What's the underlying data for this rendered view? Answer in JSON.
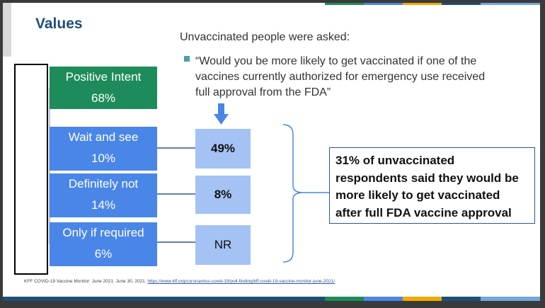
{
  "slide": {
    "title": "Values",
    "intro": "Unvaccinated people were asked:",
    "question": "“Would you be more likely to get vaccinated if one of the vaccines currently authorized for emergency use received full approval from the FDA”",
    "categories": [
      {
        "label": "Positive Intent",
        "value": "68%",
        "color": "#1e8c5a"
      },
      {
        "label": "Wait and see",
        "value": "10%",
        "color": "#4a86e8"
      },
      {
        "label": "Definitely not",
        "value": "14%",
        "color": "#4a86e8"
      },
      {
        "label": "Only if required",
        "value": "6%",
        "color": "#4a86e8"
      }
    ],
    "results": [
      {
        "value": "49%"
      },
      {
        "value": "8%"
      },
      {
        "value": "NR"
      }
    ],
    "callout": "31% of unvaccinated respondents said they would be more likely to get vaccinated after full FDA vaccine approval",
    "footnote": {
      "text": "KFF COVID-19 Vaccine Monitor: June 2021. June 30, 2021.",
      "link": "https://www.kff.org/coronavirus-covid-19/poll-finding/kff-covid-19-vaccine-monitor-june-2021/"
    }
  },
  "colors": {
    "title": "#1f4e79",
    "arrow": "#4a86e8",
    "result_box": "#a4c2f4",
    "callout_border": "#2f5597"
  }
}
